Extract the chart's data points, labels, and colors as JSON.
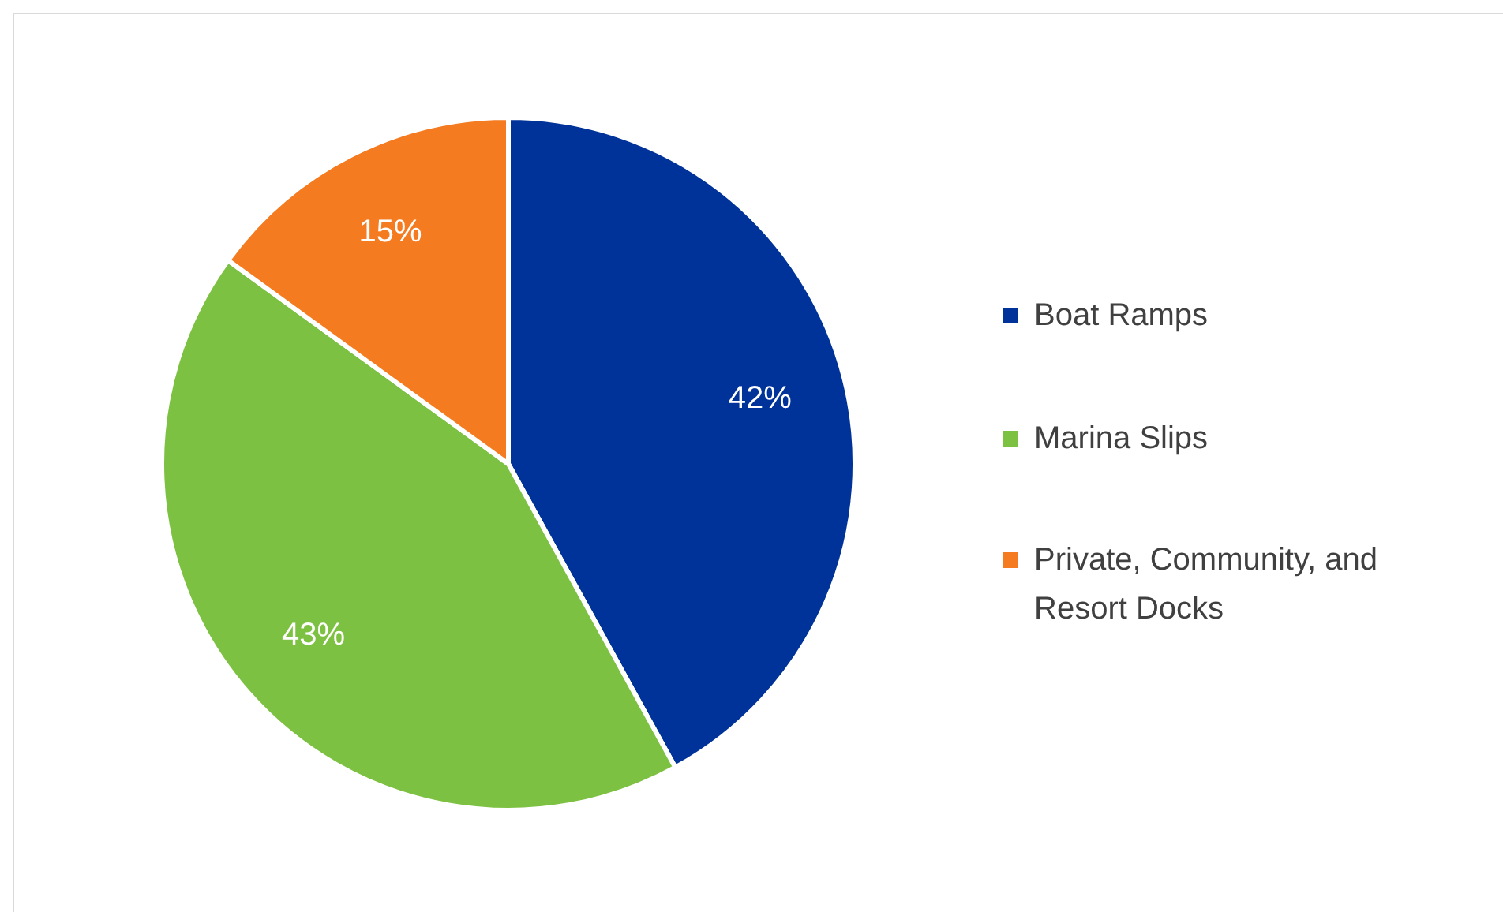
{
  "chart_data": {
    "type": "pie",
    "categories": [
      "Boat Ramps",
      "Marina Slips",
      "Private, Community, and Resort Docks"
    ],
    "values": [
      42,
      43,
      15
    ],
    "colors": [
      "#003399",
      "#7dc142",
      "#f47b20"
    ],
    "value_labels": [
      "42%",
      "43%",
      "15%"
    ],
    "legend": "right"
  }
}
